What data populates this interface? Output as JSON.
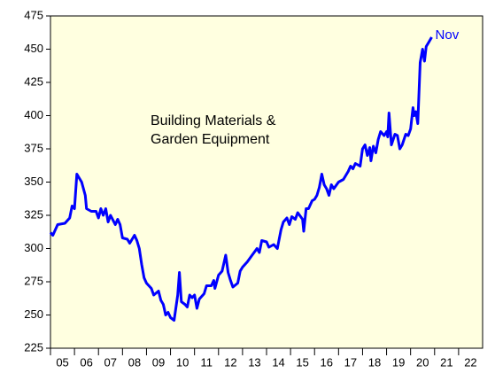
{
  "chart_data": {
    "type": "line",
    "title_lines": [
      "Building Materials &",
      "Garden Equipment"
    ],
    "annotation": "Nov",
    "color": "#0000ff",
    "background": "#ffffe0",
    "x": [
      2005.0,
      2005.1,
      2005.3,
      2005.6,
      2005.8,
      2005.9,
      2006.0,
      2006.1,
      2006.3,
      2006.45,
      2006.5,
      2006.7,
      2006.9,
      2007.0,
      2007.1,
      2007.2,
      2007.3,
      2007.4,
      2007.5,
      2007.7,
      2007.8,
      2007.9,
      2008.0,
      2008.2,
      2008.3,
      2008.5,
      2008.6,
      2008.7,
      2008.8,
      2008.9,
      2009.0,
      2009.2,
      2009.3,
      2009.5,
      2009.6,
      2009.7,
      2009.8,
      2009.9,
      2010.0,
      2010.15,
      2010.3,
      2010.37,
      2010.45,
      2010.6,
      2010.7,
      2010.8,
      2010.9,
      2011.0,
      2011.1,
      2011.2,
      2011.4,
      2011.5,
      2011.7,
      2011.8,
      2011.85,
      2012.0,
      2012.15,
      2012.3,
      2012.4,
      2012.5,
      2012.6,
      2012.8,
      2012.9,
      2013.0,
      2013.2,
      2013.4,
      2013.6,
      2013.7,
      2013.8,
      2014.0,
      2014.1,
      2014.3,
      2014.45,
      2014.6,
      2014.7,
      2014.85,
      2014.95,
      2015.05,
      2015.2,
      2015.3,
      2015.5,
      2015.55,
      2015.65,
      2015.75,
      2015.9,
      2016.0,
      2016.1,
      2016.2,
      2016.3,
      2016.4,
      2016.5,
      2016.6,
      2016.7,
      2016.8,
      2017.0,
      2017.2,
      2017.4,
      2017.5,
      2017.6,
      2017.7,
      2017.9,
      2018.0,
      2018.1,
      2018.2,
      2018.3,
      2018.35,
      2018.45,
      2018.55,
      2018.65,
      2018.75,
      2018.9,
      2019.0,
      2019.05,
      2019.1,
      2019.2,
      2019.35,
      2019.45,
      2019.55,
      2019.65,
      2019.8,
      2019.9,
      2020.0,
      2020.1,
      2020.15,
      2020.22,
      2020.3,
      2020.4,
      2020.5,
      2020.58,
      2020.65,
      2020.75,
      2020.88
    ],
    "values": [
      312,
      310,
      318,
      319,
      323,
      332,
      330,
      356,
      350,
      340,
      330,
      328,
      328,
      323,
      330,
      325,
      330,
      320,
      325,
      318,
      322,
      318,
      308,
      307,
      304,
      310,
      306,
      300,
      288,
      278,
      274,
      270,
      265,
      268,
      261,
      258,
      250,
      252,
      248,
      246,
      265,
      282,
      260,
      258,
      256,
      265,
      263,
      265,
      255,
      262,
      266,
      272,
      272,
      276,
      270,
      280,
      283,
      295,
      282,
      276,
      271,
      274,
      283,
      286,
      290,
      295,
      300,
      297,
      306,
      305,
      301,
      303,
      300,
      314,
      320,
      323,
      318,
      324,
      322,
      327,
      322,
      313,
      330,
      330,
      336,
      337,
      340,
      346,
      356,
      348,
      345,
      340,
      348,
      345,
      350,
      352,
      358,
      362,
      360,
      364,
      362,
      375,
      378,
      370,
      376,
      366,
      377,
      372,
      382,
      388,
      385,
      388,
      384,
      402,
      378,
      386,
      385,
      375,
      378,
      386,
      385,
      390,
      406,
      400,
      403,
      394,
      440,
      450,
      441,
      452,
      455,
      459
    ],
    "xlim": [
      2005,
      2023
    ],
    "xticks": [
      {
        "value": 2005.5,
        "label": "05"
      },
      {
        "value": 2006.5,
        "label": "06"
      },
      {
        "value": 2007.5,
        "label": "07"
      },
      {
        "value": 2008.5,
        "label": "08"
      },
      {
        "value": 2009.5,
        "label": "09"
      },
      {
        "value": 2010.5,
        "label": "10"
      },
      {
        "value": 2011.5,
        "label": "11"
      },
      {
        "value": 2012.5,
        "label": "12"
      },
      {
        "value": 2013.5,
        "label": "13"
      },
      {
        "value": 2014.5,
        "label": "14"
      },
      {
        "value": 2015.5,
        "label": "15"
      },
      {
        "value": 2016.5,
        "label": "16"
      },
      {
        "value": 2017.5,
        "label": "17"
      },
      {
        "value": 2018.5,
        "label": "18"
      },
      {
        "value": 2019.5,
        "label": "19"
      },
      {
        "value": 2020.5,
        "label": "20"
      },
      {
        "value": 2021.5,
        "label": "21"
      },
      {
        "value": 2022.5,
        "label": "22"
      }
    ],
    "ylim": [
      225,
      475
    ],
    "yticks": [
      225,
      250,
      275,
      300,
      325,
      350,
      375,
      400,
      425,
      450,
      475
    ],
    "grid": false
  }
}
